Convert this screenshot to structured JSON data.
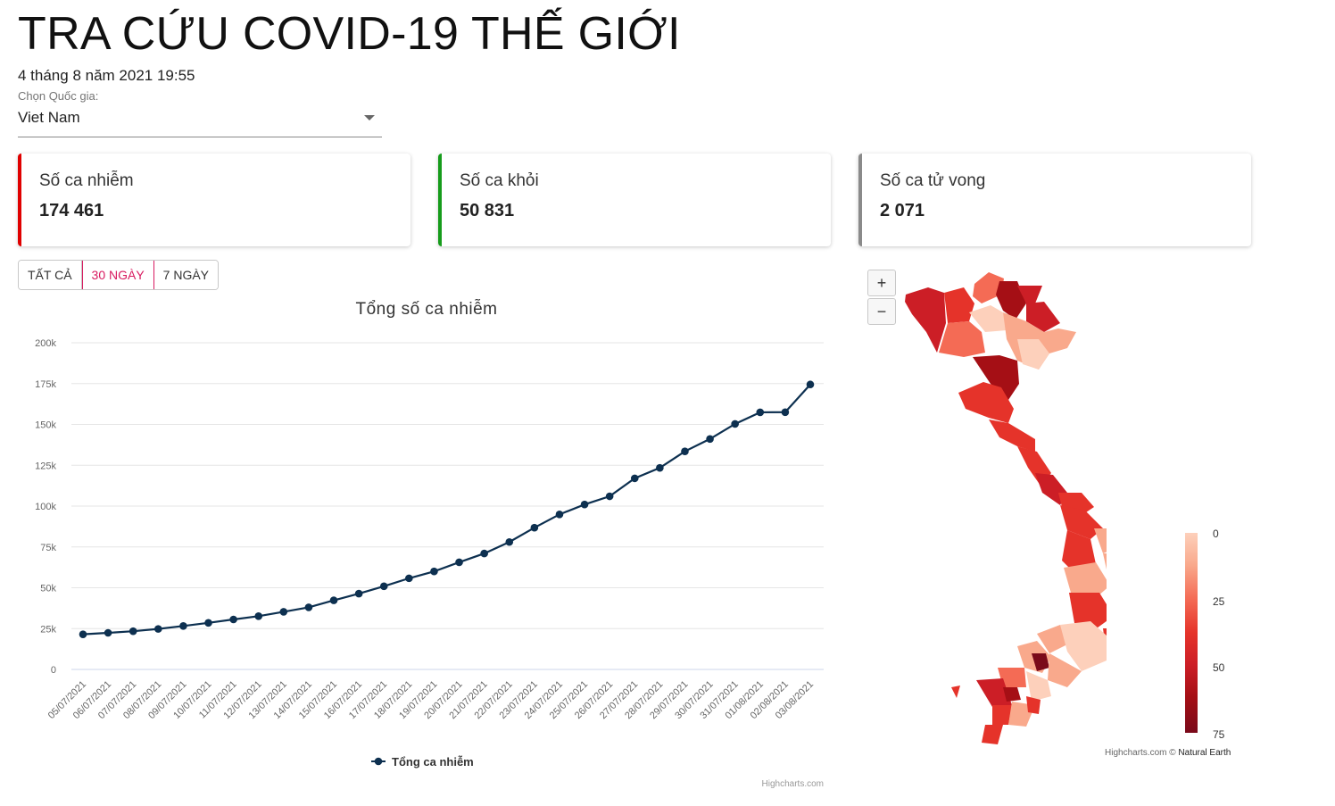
{
  "page": {
    "title": "TRA CỨU COVID-19 THẾ GIỚI",
    "datetime": "4 tháng 8 năm 2021 19:55"
  },
  "country_select": {
    "label": "Chọn Quốc gia:",
    "value": "Viet Nam"
  },
  "cards": {
    "infected": {
      "label": "Số ca nhiễm",
      "value": "174 461",
      "color": "#e00000"
    },
    "recovered": {
      "label": "Số ca khỏi",
      "value": "50 831",
      "color": "#169c1b"
    },
    "deaths": {
      "label": "Số ca tử vong",
      "value": "2 071",
      "color": "#8a8a8a"
    }
  },
  "range_buttons": [
    {
      "label": "TẤT CẢ",
      "active": false
    },
    {
      "label": "30 NGÀY",
      "active": true
    },
    {
      "label": "7 NGÀY",
      "active": false
    }
  ],
  "chart_data": {
    "type": "line",
    "title": "Tổng số ca nhiễm",
    "xlabel": "",
    "ylabel": "",
    "ylim": [
      0,
      200000
    ],
    "y_ticks": [
      "0",
      "25k",
      "50k",
      "75k",
      "100k",
      "125k",
      "150k",
      "175k",
      "200k"
    ],
    "categories": [
      "05/07/2021",
      "06/07/2021",
      "07/07/2021",
      "08/07/2021",
      "09/07/2021",
      "10/07/2021",
      "11/07/2021",
      "12/07/2021",
      "13/07/2021",
      "14/07/2021",
      "15/07/2021",
      "16/07/2021",
      "17/07/2021",
      "18/07/2021",
      "19/07/2021",
      "20/07/2021",
      "21/07/2021",
      "22/07/2021",
      "23/07/2021",
      "24/07/2021",
      "25/07/2021",
      "26/07/2021",
      "27/07/2021",
      "28/07/2021",
      "29/07/2021",
      "30/07/2021",
      "31/07/2021",
      "01/08/2021",
      "02/08/2021",
      "03/08/2021"
    ],
    "series": [
      {
        "name": "Tổng ca nhiễm",
        "color": "#0d3050",
        "values": [
          21500,
          22400,
          23400,
          24800,
          26600,
          28500,
          30600,
          32600,
          35300,
          38000,
          42300,
          46400,
          50900,
          55800,
          60000,
          65600,
          71000,
          78000,
          86800,
          94900,
          101000,
          106000,
          117000,
          123400,
          133500,
          141100,
          150300,
          157400,
          157500,
          174461
        ]
      }
    ],
    "legend": "bottom-center",
    "grid": true,
    "credit": "Highcharts.com"
  },
  "map": {
    "zoom_in": "+",
    "zoom_out": "−",
    "legend_ticks": [
      "0",
      "25",
      "50",
      "75"
    ],
    "credit_prefix": "Highcharts.com ©",
    "credit_source": "Natural Earth",
    "colors": [
      "#fdd0bb",
      "#f9a98c",
      "#f46b55",
      "#e5332a",
      "#cc1e26",
      "#a50f15"
    ]
  }
}
